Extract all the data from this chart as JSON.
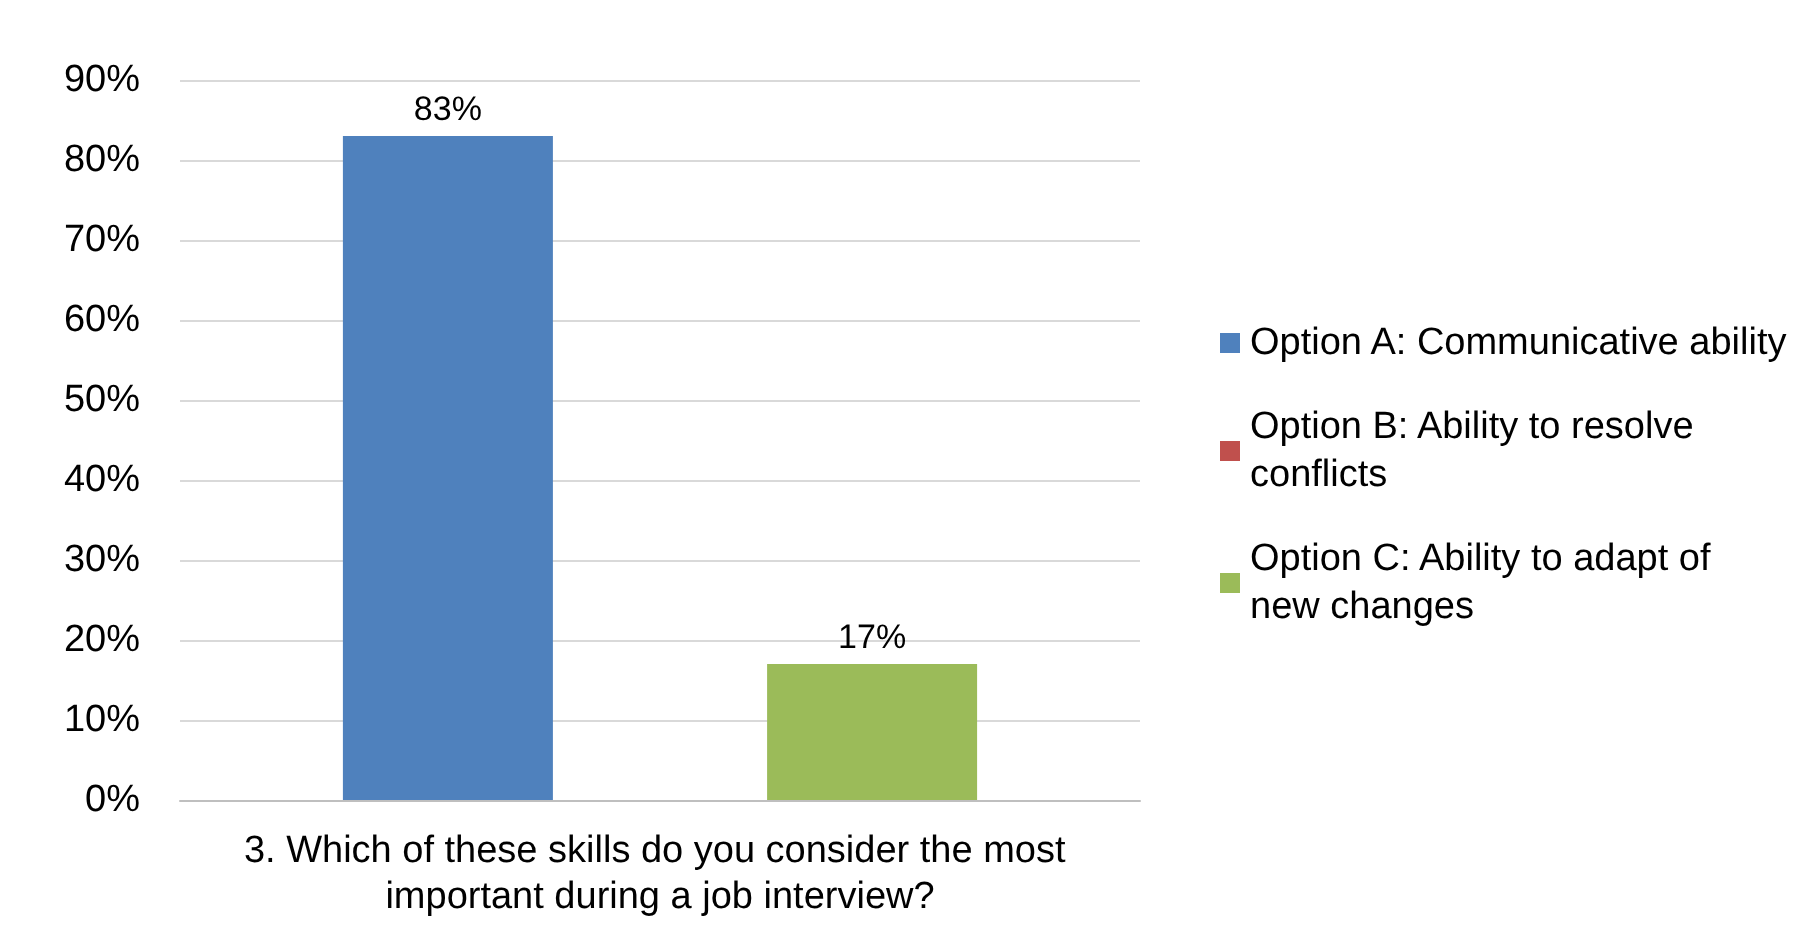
{
  "chart_data": {
    "type": "bar",
    "xlabel": null,
    "categories": [
      "3. Which of these skills do you consider the most important during a job interview?"
    ],
    "series": [
      {
        "name": "Option A: Communicative ability",
        "color": "#4f81bd",
        "values": [
          83
        ],
        "value_labels": [
          "83%"
        ]
      },
      {
        "name": "Option B: Ability to resolve conflicts",
        "color": "#c0504d",
        "values": [
          0
        ],
        "value_labels": [
          null
        ]
      },
      {
        "name": "Option C: Ability to adapt of new changes",
        "color": "#9bbb59",
        "values": [
          17
        ],
        "value_labels": [
          "17%"
        ]
      }
    ],
    "ylim": [
      0,
      90
    ],
    "yticks": [
      {
        "value": 0,
        "label": "0%"
      },
      {
        "value": 10,
        "label": "10%"
      },
      {
        "value": 20,
        "label": "20%"
      },
      {
        "value": 30,
        "label": "30%"
      },
      {
        "value": 40,
        "label": "40%"
      },
      {
        "value": 50,
        "label": "50%"
      },
      {
        "value": 60,
        "label": "60%"
      },
      {
        "value": 70,
        "label": "70%"
      },
      {
        "value": 80,
        "label": "80%"
      },
      {
        "value": 90,
        "label": "90%"
      }
    ],
    "grid": "y",
    "legend": "right"
  }
}
